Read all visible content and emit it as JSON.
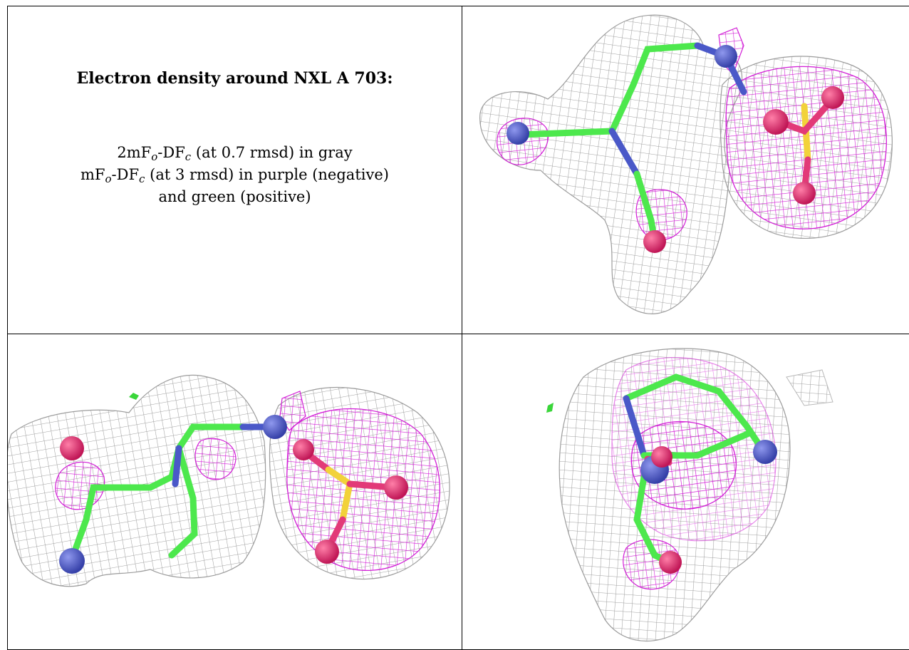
{
  "caption": {
    "title": "Electron density around NXL A 703:",
    "line1_pre": "2mF",
    "line1_sub1": "o",
    "line1_mid": "-DF",
    "line1_sub2": "c",
    "line1_post": " (at 0.7 rmsd) in gray",
    "line2_pre": "mF",
    "line2_sub1": "o",
    "line2_mid": "-DF",
    "line2_sub2": "c",
    "line2_post": " (at 3 rmsd) in purple (negative)",
    "line3": "and green (positive)"
  },
  "colors": {
    "map_2fofc": "#9c9c9c",
    "map_fofc_negative": "#d21fd6",
    "map_fofc_positive": "#3ad63a",
    "carbon": "#4de84d",
    "nitrogen": "#4a58c8",
    "oxygen": "#e0286e",
    "sulfur": "#f2d23a"
  },
  "panels": [
    {
      "name": "view-1",
      "icon": "electron-density-mesh-icon"
    },
    {
      "name": "view-2",
      "icon": "electron-density-mesh-icon"
    },
    {
      "name": "view-3",
      "icon": "electron-density-mesh-icon"
    }
  ]
}
